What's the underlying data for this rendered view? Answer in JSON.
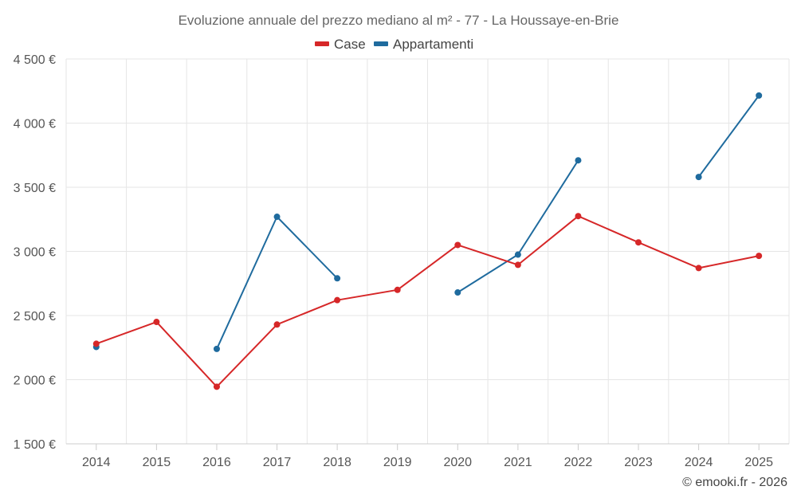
{
  "chart_data": {
    "type": "line",
    "title": "Evoluzione annuale del prezzo mediano al m² - 77 - La Houssaye-en-Brie",
    "categories": [
      "2014",
      "2015",
      "2016",
      "2017",
      "2018",
      "2019",
      "2020",
      "2021",
      "2022",
      "2023",
      "2024",
      "2025"
    ],
    "series": [
      {
        "name": "Case",
        "color": "#d62728",
        "values": [
          2280,
          2450,
          1945,
          2430,
          2620,
          2700,
          3050,
          2895,
          3275,
          3070,
          2870,
          2965
        ]
      },
      {
        "name": "Appartamenti",
        "color": "#1f6b9e",
        "values": [
          2255,
          null,
          2240,
          3270,
          2790,
          null,
          2680,
          2975,
          3710,
          null,
          3580,
          4215
        ]
      }
    ],
    "ylim": [
      1500,
      4500
    ],
    "yticks": [
      1500,
      2000,
      2500,
      3000,
      3500,
      4000,
      4500
    ],
    "ytick_labels": [
      "1 500 €",
      "2 000 €",
      "2 500 €",
      "3 000 €",
      "3 500 €",
      "4 000 €",
      "4 500 €"
    ],
    "xlabel": "",
    "ylabel": "",
    "grid": true,
    "legend_position": "top-center",
    "credit": "© emooki.fr - 2026"
  }
}
